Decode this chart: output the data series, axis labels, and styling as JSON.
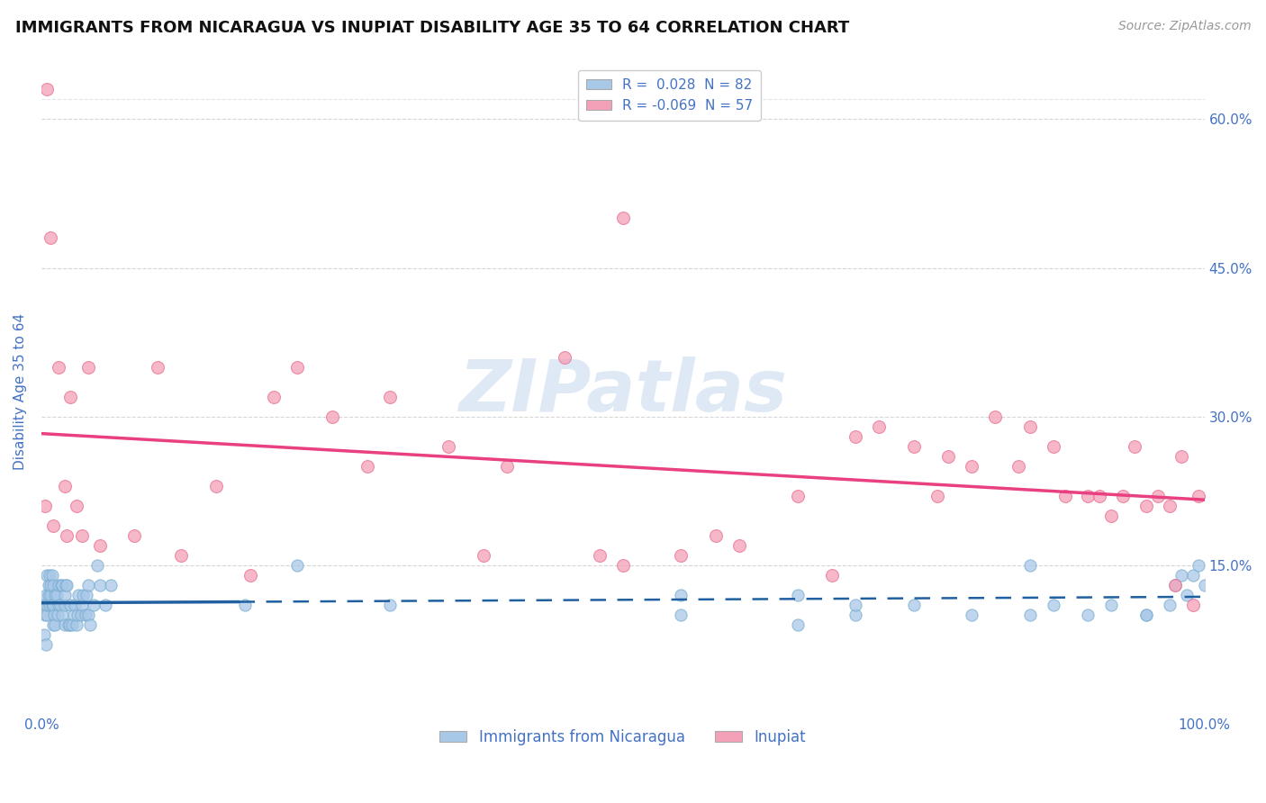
{
  "title": "IMMIGRANTS FROM NICARAGUA VS INUPIAT DISABILITY AGE 35 TO 64 CORRELATION CHART",
  "source": "Source: ZipAtlas.com",
  "ylabel": "Disability Age 35 to 64",
  "xlim": [
    0,
    100
  ],
  "ylim": [
    0,
    65
  ],
  "legend_r1": "R =  0.028",
  "legend_n1": "N = 82",
  "legend_r2": "R = -0.069",
  "legend_n2": "N = 57",
  "blue_color": "#a8c8e8",
  "pink_color": "#f4a0b8",
  "blue_edge_color": "#7aaed0",
  "pink_edge_color": "#e87090",
  "blue_line_color": "#2060a0",
  "pink_line_color": "#e84080",
  "tick_color": "#4472c4",
  "grid_color": "#cccccc",
  "background_color": "#ffffff",
  "watermark": "ZIPatlas",
  "blue_x": [
    0.2,
    0.3,
    0.3,
    0.4,
    0.4,
    0.5,
    0.5,
    0.5,
    0.6,
    0.6,
    0.7,
    0.7,
    0.8,
    0.8,
    0.9,
    0.9,
    1.0,
    1.0,
    1.0,
    1.1,
    1.2,
    1.2,
    1.3,
    1.4,
    1.5,
    1.5,
    1.6,
    1.7,
    1.8,
    1.8,
    2.0,
    2.0,
    2.0,
    2.1,
    2.2,
    2.3,
    2.4,
    2.5,
    2.6,
    2.8,
    2.9,
    3.0,
    3.1,
    3.2,
    3.4,
    3.5,
    3.6,
    3.8,
    3.9,
    4.0,
    4.0,
    4.2,
    4.5,
    4.8,
    5.0,
    5.5,
    6.0,
    17.5,
    22.0,
    30.0,
    55.0,
    65.0,
    70.0,
    75.0,
    80.0,
    85.0,
    87.0,
    90.0,
    92.0,
    95.0,
    97.0,
    97.5,
    98.0,
    98.5,
    99.0,
    99.5,
    100.0,
    55.0,
    70.0,
    85.0,
    95.0,
    65.0
  ],
  "blue_y": [
    8,
    11,
    10,
    7,
    12,
    10,
    11,
    14,
    12,
    13,
    11,
    14,
    12,
    13,
    11,
    14,
    9,
    11,
    13,
    10,
    9,
    12,
    12,
    10,
    11,
    13,
    11,
    13,
    10,
    13,
    9,
    11,
    12,
    13,
    13,
    9,
    9,
    11,
    9,
    10,
    11,
    9,
    10,
    12,
    10,
    11,
    12,
    10,
    12,
    10,
    13,
    9,
    11,
    15,
    13,
    11,
    13,
    11,
    15,
    11,
    10,
    12,
    10,
    11,
    10,
    10,
    11,
    10,
    11,
    10,
    11,
    13,
    14,
    12,
    14,
    15,
    13,
    12,
    11,
    15,
    10,
    9
  ],
  "pink_x": [
    0.3,
    0.5,
    0.8,
    1.5,
    2.0,
    2.5,
    3.0,
    4.0,
    5.0,
    10.0,
    15.0,
    20.0,
    22.0,
    25.0,
    30.0,
    35.0,
    40.0,
    45.0,
    50.0,
    55.0,
    60.0,
    65.0,
    70.0,
    72.0,
    75.0,
    78.0,
    80.0,
    82.0,
    85.0,
    87.0,
    88.0,
    90.0,
    92.0,
    93.0,
    95.0,
    96.0,
    97.0,
    98.0,
    99.0,
    1.0,
    2.2,
    3.5,
    8.0,
    12.0,
    18.0,
    28.0,
    38.0,
    48.0,
    58.0,
    68.0,
    77.0,
    84.0,
    91.0,
    94.0,
    97.5,
    99.5,
    50.0
  ],
  "pink_y": [
    21,
    63,
    48,
    35,
    23,
    32,
    21,
    35,
    17,
    35,
    23,
    32,
    35,
    30,
    32,
    27,
    25,
    36,
    15,
    16,
    17,
    22,
    28,
    29,
    27,
    26,
    25,
    30,
    29,
    27,
    22,
    22,
    20,
    22,
    21,
    22,
    21,
    26,
    11,
    19,
    18,
    18,
    18,
    16,
    14,
    25,
    16,
    16,
    18,
    14,
    22,
    25,
    22,
    27,
    13,
    22,
    50
  ],
  "blue_split_x": 17.0
}
